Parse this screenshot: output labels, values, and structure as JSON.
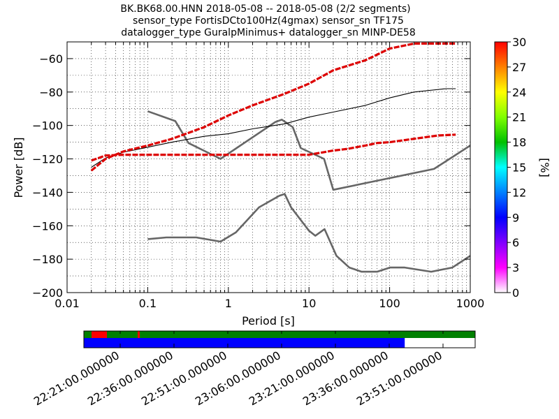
{
  "title_lines": [
    "BK.BK68.00.HNN   2018-05-08 -- 2018-05-08  (2/2 segments)",
    "sensor_type FortisDCto100Hz(4gmax) sensor_sn TF175",
    "datalogger_type GuralpMinimus+ datalogger_sn MINP-DE58"
  ],
  "chart_data": {
    "type": "line",
    "xscale": "log",
    "xlabel": "Period [s]",
    "ylabel": "Power [dB]",
    "xlim": [
      0.01,
      1000
    ],
    "ylim": [
      -200,
      -50
    ],
    "x_ticks": [
      0.01,
      0.1,
      1,
      10,
      100,
      1000
    ],
    "x_tick_labels": [
      "0.01",
      "0.1",
      "1",
      "10",
      "100",
      "1000"
    ],
    "y_ticks": [
      -200,
      -180,
      -160,
      -140,
      -120,
      -100,
      -80,
      -60
    ],
    "y_tick_labels": [
      "−200",
      "−180",
      "−160",
      "−140",
      "−120",
      "−100",
      "−80",
      "−60"
    ],
    "grid": "dotted, both axes",
    "series": [
      {
        "role": "low noise model",
        "color": "#666666",
        "x": [
          0.1,
          0.17,
          0.4,
          0.8,
          1.24,
          2.4,
          4.3,
          5,
          6,
          10,
          12,
          15.6,
          21.9,
          31.6,
          45,
          70,
          101,
          154,
          328,
          600,
          1000
        ],
        "y": [
          -168,
          -167,
          -167,
          -169.5,
          -164,
          -149,
          -142,
          -141,
          -149,
          -163,
          -166,
          -162,
          -178,
          -185,
          -187.5,
          -187.5,
          -185,
          -185,
          -187.5,
          -185,
          -178
        ]
      },
      {
        "role": "high noise model",
        "color": "#666666",
        "x": [
          0.1,
          0.22,
          0.32,
          0.8,
          3.8,
          4.6,
          6.3,
          7.9,
          15.4,
          20,
          354.8,
          1000
        ],
        "y": [
          -91.5,
          -97.4,
          -110.5,
          -120,
          -98,
          -96.5,
          -101,
          -113.5,
          -120,
          -138.5,
          -126,
          -112
        ]
      },
      {
        "role": "median",
        "color": "#000000",
        "x": [
          0.02,
          0.03,
          0.05,
          0.1,
          0.2,
          0.5,
          1,
          2,
          5,
          10,
          20,
          50,
          100,
          200,
          500,
          660
        ],
        "y": [
          -125,
          -119.5,
          -116,
          -113,
          -110,
          -106.5,
          -105,
          -102,
          -99,
          -95,
          -92,
          -88,
          -83.5,
          -80,
          -78,
          -78
        ]
      },
      {
        "role": "upper percentile",
        "color": "#dd0000",
        "x": [
          0.02,
          0.03,
          0.05,
          0.1,
          0.2,
          0.5,
          1,
          2,
          5,
          10,
          20,
          50,
          100,
          200,
          660
        ],
        "y": [
          -127,
          -120,
          -115.5,
          -112,
          -108,
          -101,
          -94,
          -88,
          -81,
          -75,
          -67,
          -61,
          -54,
          -51,
          -51
        ]
      },
      {
        "role": "lower percentile",
        "color": "#dd0000",
        "x": [
          0.02,
          0.03,
          0.05,
          0.1,
          0.2,
          0.5,
          1,
          2,
          5,
          10,
          20,
          30,
          50,
          70,
          100,
          200,
          400,
          660
        ],
        "y": [
          -121,
          -118,
          -117.5,
          -117.5,
          -117.5,
          -117.5,
          -117.5,
          -117.5,
          -117.5,
          -117.5,
          -115,
          -114,
          -112,
          -110.5,
          -110,
          -108,
          -106,
          -105.5
        ]
      }
    ],
    "colorbar": {
      "label": "[%]",
      "min": 0,
      "max": 30,
      "ticks": [
        "0",
        "3",
        "6",
        "9",
        "12",
        "15",
        "18",
        "21",
        "24",
        "27",
        "30"
      ],
      "colors": [
        "#ffffff",
        "#ff00ff",
        "#8000ff",
        "#0000ff",
        "#0080ff",
        "#00ffff",
        "#00c000",
        "#80ff00",
        "#ffff00",
        "#ff8000",
        "#ff0000"
      ]
    }
  },
  "timeline": {
    "tick_labels": [
      "22:21:00.000000",
      "22:36:00.000000",
      "22:51:00.000000",
      "23:06:00.000000",
      "23:21:00.000000",
      "23:36:00.000000",
      "23:51:00.000000"
    ],
    "top_bar_color": "#008000",
    "gap_color": "#ff0000",
    "bottom_bar_color": "#0000ff",
    "data_coverage_fraction": 0.82
  }
}
